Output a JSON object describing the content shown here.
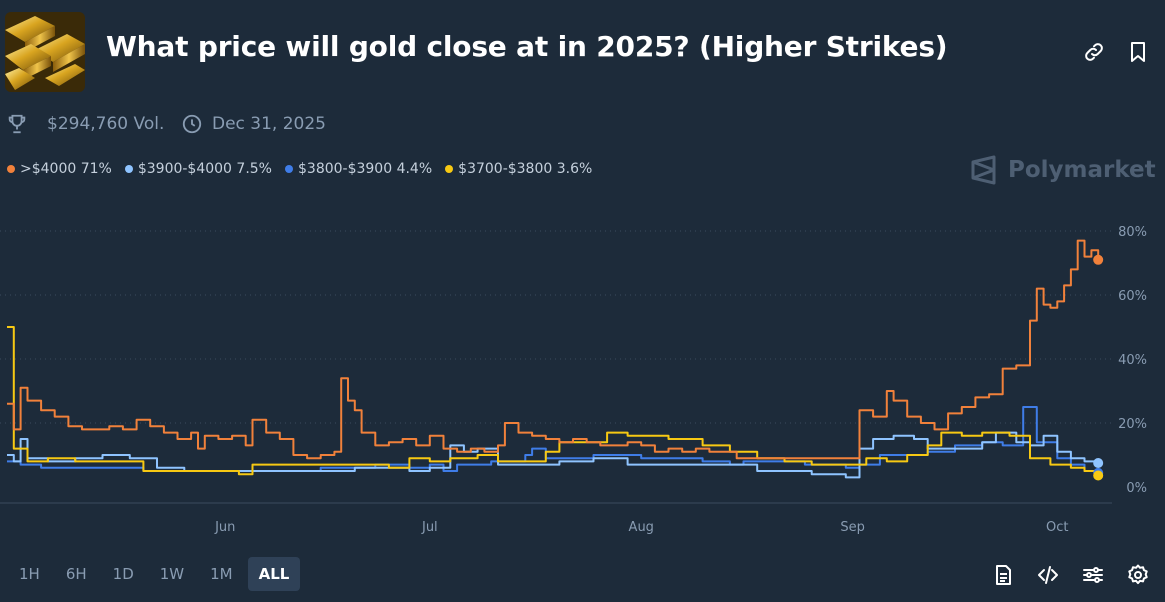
{
  "header": {
    "title": "What price will gold close at in 2025? (Higher Strikes)",
    "thumbnail_icon": "gold-bars-image",
    "link_icon": "link-icon",
    "bookmark_icon": "bookmark-icon"
  },
  "meta": {
    "volume": "$294,760 Vol.",
    "end_date": "Dec 31, 2025"
  },
  "brand": {
    "name": "Polymarket"
  },
  "legend": [
    {
      "label": ">$4000 71%",
      "color": "#f1813b"
    },
    {
      "label": "$3900-$4000 7.5%",
      "color": "#8fc4ff"
    },
    {
      "label": "$3800-$3900 4.4%",
      "color": "#3f7de8"
    },
    {
      "label": "$3700-$3800 3.6%",
      "color": "#f7c913"
    }
  ],
  "range_buttons": [
    {
      "label": "1H",
      "active": false
    },
    {
      "label": "6H",
      "active": false
    },
    {
      "label": "1D",
      "active": false
    },
    {
      "label": "1W",
      "active": false
    },
    {
      "label": "1M",
      "active": false
    },
    {
      "label": "ALL",
      "active": true
    }
  ],
  "toolbar_icons": [
    "document-icon",
    "embed-code-icon",
    "sliders-icon",
    "gear-icon"
  ],
  "chart_data": {
    "type": "line",
    "x_range": [
      "2025-04-30",
      "2025-10-08"
    ],
    "ylim": [
      0,
      80
    ],
    "y_ticks": [
      0,
      20,
      40,
      60,
      80
    ],
    "y_tick_labels": [
      "0%",
      "20%",
      "40%",
      "60%",
      "80%"
    ],
    "x_ticks": [
      {
        "date": "2025-06-01",
        "label": "Jun"
      },
      {
        "date": "2025-07-01",
        "label": "Jul"
      },
      {
        "date": "2025-08-01",
        "label": "Aug"
      },
      {
        "date": "2025-09-01",
        "label": "Sep"
      },
      {
        "date": "2025-10-01",
        "label": "Oct"
      }
    ],
    "grid": "horizontal-dotted",
    "legend_position": "top-left",
    "series": [
      {
        "name": ">$4000",
        "color": "#f1813b",
        "points": [
          [
            "2025-04-30",
            26
          ],
          [
            "2025-05-01",
            18
          ],
          [
            "2025-05-02",
            31
          ],
          [
            "2025-05-03",
            27
          ],
          [
            "2025-05-05",
            24
          ],
          [
            "2025-05-07",
            22
          ],
          [
            "2025-05-09",
            19
          ],
          [
            "2025-05-11",
            18
          ],
          [
            "2025-05-13",
            18
          ],
          [
            "2025-05-15",
            19
          ],
          [
            "2025-05-17",
            18
          ],
          [
            "2025-05-19",
            21
          ],
          [
            "2025-05-21",
            19
          ],
          [
            "2025-05-23",
            17
          ],
          [
            "2025-05-25",
            15
          ],
          [
            "2025-05-27",
            17
          ],
          [
            "2025-05-28",
            12
          ],
          [
            "2025-05-29",
            16
          ],
          [
            "2025-05-31",
            15
          ],
          [
            "2025-06-02",
            16
          ],
          [
            "2025-06-04",
            13
          ],
          [
            "2025-06-05",
            21
          ],
          [
            "2025-06-07",
            17
          ],
          [
            "2025-06-09",
            15
          ],
          [
            "2025-06-11",
            10
          ],
          [
            "2025-06-13",
            9
          ],
          [
            "2025-06-15",
            10
          ],
          [
            "2025-06-17",
            11
          ],
          [
            "2025-06-18",
            34
          ],
          [
            "2025-06-19",
            27
          ],
          [
            "2025-06-20",
            24
          ],
          [
            "2025-06-21",
            17
          ],
          [
            "2025-06-23",
            13
          ],
          [
            "2025-06-25",
            14
          ],
          [
            "2025-06-27",
            15
          ],
          [
            "2025-06-29",
            13
          ],
          [
            "2025-07-01",
            16
          ],
          [
            "2025-07-03",
            12
          ],
          [
            "2025-07-05",
            11
          ],
          [
            "2025-07-07",
            12
          ],
          [
            "2025-07-09",
            11
          ],
          [
            "2025-07-11",
            13
          ],
          [
            "2025-07-12",
            20
          ],
          [
            "2025-07-14",
            17
          ],
          [
            "2025-07-16",
            16
          ],
          [
            "2025-07-18",
            15
          ],
          [
            "2025-07-20",
            14
          ],
          [
            "2025-07-22",
            15
          ],
          [
            "2025-07-24",
            14
          ],
          [
            "2025-07-26",
            13
          ],
          [
            "2025-07-28",
            13
          ],
          [
            "2025-07-30",
            14
          ],
          [
            "2025-08-01",
            13
          ],
          [
            "2025-08-03",
            11
          ],
          [
            "2025-08-05",
            12
          ],
          [
            "2025-08-07",
            11
          ],
          [
            "2025-08-09",
            12
          ],
          [
            "2025-08-11",
            11
          ],
          [
            "2025-08-13",
            11
          ],
          [
            "2025-08-15",
            9
          ],
          [
            "2025-08-17",
            9
          ],
          [
            "2025-08-19",
            9
          ],
          [
            "2025-08-21",
            9
          ],
          [
            "2025-08-23",
            9
          ],
          [
            "2025-08-25",
            9
          ],
          [
            "2025-08-27",
            9
          ],
          [
            "2025-08-29",
            9
          ],
          [
            "2025-08-31",
            9
          ],
          [
            "2025-09-02",
            24
          ],
          [
            "2025-09-04",
            22
          ],
          [
            "2025-09-06",
            30
          ],
          [
            "2025-09-07",
            27
          ],
          [
            "2025-09-09",
            22
          ],
          [
            "2025-09-11",
            20
          ],
          [
            "2025-09-13",
            18
          ],
          [
            "2025-09-15",
            23
          ],
          [
            "2025-09-17",
            25
          ],
          [
            "2025-09-19",
            28
          ],
          [
            "2025-09-21",
            29
          ],
          [
            "2025-09-23",
            37
          ],
          [
            "2025-09-25",
            38
          ],
          [
            "2025-09-27",
            52
          ],
          [
            "2025-09-28",
            62
          ],
          [
            "2025-09-29",
            57
          ],
          [
            "2025-09-30",
            56
          ],
          [
            "2025-10-01",
            58
          ],
          [
            "2025-10-02",
            63
          ],
          [
            "2025-10-03",
            68
          ],
          [
            "2025-10-04",
            77
          ],
          [
            "2025-10-05",
            72
          ],
          [
            "2025-10-06",
            74
          ],
          [
            "2025-10-07",
            71
          ]
        ]
      },
      {
        "name": "$3900-$4000",
        "color": "#8fc4ff",
        "points": [
          [
            "2025-04-30",
            10
          ],
          [
            "2025-05-01",
            8
          ],
          [
            "2025-05-02",
            15
          ],
          [
            "2025-05-03",
            9
          ],
          [
            "2025-05-06",
            8
          ],
          [
            "2025-05-10",
            9
          ],
          [
            "2025-05-14",
            10
          ],
          [
            "2025-05-18",
            9
          ],
          [
            "2025-05-22",
            6
          ],
          [
            "2025-05-26",
            5
          ],
          [
            "2025-05-31",
            5
          ],
          [
            "2025-06-05",
            5
          ],
          [
            "2025-06-10",
            5
          ],
          [
            "2025-06-15",
            5
          ],
          [
            "2025-06-20",
            6
          ],
          [
            "2025-06-25",
            6
          ],
          [
            "2025-06-28",
            5
          ],
          [
            "2025-07-01",
            6
          ],
          [
            "2025-07-04",
            13
          ],
          [
            "2025-07-06",
            11
          ],
          [
            "2025-07-08",
            12
          ],
          [
            "2025-07-11",
            7
          ],
          [
            "2025-07-15",
            7
          ],
          [
            "2025-07-20",
            8
          ],
          [
            "2025-07-25",
            9
          ],
          [
            "2025-07-30",
            7
          ],
          [
            "2025-08-04",
            7
          ],
          [
            "2025-08-09",
            7
          ],
          [
            "2025-08-14",
            7
          ],
          [
            "2025-08-18",
            5
          ],
          [
            "2025-08-22",
            5
          ],
          [
            "2025-08-26",
            4
          ],
          [
            "2025-08-31",
            3
          ],
          [
            "2025-09-02",
            12
          ],
          [
            "2025-09-04",
            15
          ],
          [
            "2025-09-07",
            16
          ],
          [
            "2025-09-10",
            15
          ],
          [
            "2025-09-12",
            12
          ],
          [
            "2025-09-15",
            12
          ],
          [
            "2025-09-18",
            12
          ],
          [
            "2025-09-20",
            14
          ],
          [
            "2025-09-22",
            17
          ],
          [
            "2025-09-25",
            14
          ],
          [
            "2025-09-27",
            13
          ],
          [
            "2025-09-29",
            16
          ],
          [
            "2025-10-01",
            11
          ],
          [
            "2025-10-03",
            9
          ],
          [
            "2025-10-05",
            8
          ],
          [
            "2025-10-07",
            7.5
          ]
        ]
      },
      {
        "name": "$3800-$3900",
        "color": "#3f7de8",
        "points": [
          [
            "2025-04-30",
            8
          ],
          [
            "2025-05-02",
            7
          ],
          [
            "2025-05-05",
            6
          ],
          [
            "2025-05-10",
            6
          ],
          [
            "2025-05-15",
            6
          ],
          [
            "2025-05-20",
            5
          ],
          [
            "2025-05-25",
            5
          ],
          [
            "2025-05-31",
            5
          ],
          [
            "2025-06-05",
            5
          ],
          [
            "2025-06-10",
            5
          ],
          [
            "2025-06-15",
            6
          ],
          [
            "2025-06-20",
            6
          ],
          [
            "2025-06-23",
            7
          ],
          [
            "2025-06-28",
            6
          ],
          [
            "2025-07-01",
            7
          ],
          [
            "2025-07-03",
            5
          ],
          [
            "2025-07-05",
            7
          ],
          [
            "2025-07-10",
            8
          ],
          [
            "2025-07-15",
            10
          ],
          [
            "2025-07-16",
            12
          ],
          [
            "2025-07-18",
            9
          ],
          [
            "2025-07-25",
            10
          ],
          [
            "2025-08-01",
            9
          ],
          [
            "2025-08-05",
            9
          ],
          [
            "2025-08-10",
            8
          ],
          [
            "2025-08-14",
            7
          ],
          [
            "2025-08-16",
            8
          ],
          [
            "2025-08-20",
            8
          ],
          [
            "2025-08-25",
            7
          ],
          [
            "2025-08-31",
            6
          ],
          [
            "2025-09-02",
            7
          ],
          [
            "2025-09-05",
            10
          ],
          [
            "2025-09-08",
            10
          ],
          [
            "2025-09-12",
            11
          ],
          [
            "2025-09-16",
            13
          ],
          [
            "2025-09-20",
            14
          ],
          [
            "2025-09-23",
            13
          ],
          [
            "2025-09-26",
            25
          ],
          [
            "2025-09-28",
            14
          ],
          [
            "2025-10-01",
            9
          ],
          [
            "2025-10-03",
            7
          ],
          [
            "2025-10-05",
            5
          ],
          [
            "2025-10-07",
            4.4
          ]
        ]
      },
      {
        "name": "$3700-$3800",
        "color": "#f7c913",
        "points": [
          [
            "2025-04-30",
            50
          ],
          [
            "2025-05-01",
            12
          ],
          [
            "2025-05-03",
            8
          ],
          [
            "2025-05-06",
            9
          ],
          [
            "2025-05-10",
            8
          ],
          [
            "2025-05-15",
            8
          ],
          [
            "2025-05-20",
            5
          ],
          [
            "2025-05-25",
            5
          ],
          [
            "2025-05-31",
            5
          ],
          [
            "2025-06-03",
            4
          ],
          [
            "2025-06-05",
            7
          ],
          [
            "2025-06-10",
            7
          ],
          [
            "2025-06-15",
            7
          ],
          [
            "2025-06-20",
            7
          ],
          [
            "2025-06-25",
            6
          ],
          [
            "2025-06-28",
            9
          ],
          [
            "2025-07-01",
            8
          ],
          [
            "2025-07-04",
            9
          ],
          [
            "2025-07-08",
            10
          ],
          [
            "2025-07-11",
            8
          ],
          [
            "2025-07-15",
            8
          ],
          [
            "2025-07-18",
            11
          ],
          [
            "2025-07-20",
            14
          ],
          [
            "2025-07-25",
            14
          ],
          [
            "2025-07-27",
            17
          ],
          [
            "2025-07-30",
            16
          ],
          [
            "2025-08-05",
            15
          ],
          [
            "2025-08-10",
            13
          ],
          [
            "2025-08-14",
            11
          ],
          [
            "2025-08-18",
            9
          ],
          [
            "2025-08-22",
            8
          ],
          [
            "2025-08-26",
            7
          ],
          [
            "2025-08-31",
            7
          ],
          [
            "2025-09-03",
            9
          ],
          [
            "2025-09-06",
            8
          ],
          [
            "2025-09-09",
            10
          ],
          [
            "2025-09-12",
            13
          ],
          [
            "2025-09-14",
            17
          ],
          [
            "2025-09-17",
            16
          ],
          [
            "2025-09-20",
            17
          ],
          [
            "2025-09-24",
            16
          ],
          [
            "2025-09-27",
            9
          ],
          [
            "2025-09-30",
            7
          ],
          [
            "2025-10-03",
            6
          ],
          [
            "2025-10-05",
            5
          ],
          [
            "2025-10-07",
            3.6
          ]
        ]
      }
    ]
  }
}
